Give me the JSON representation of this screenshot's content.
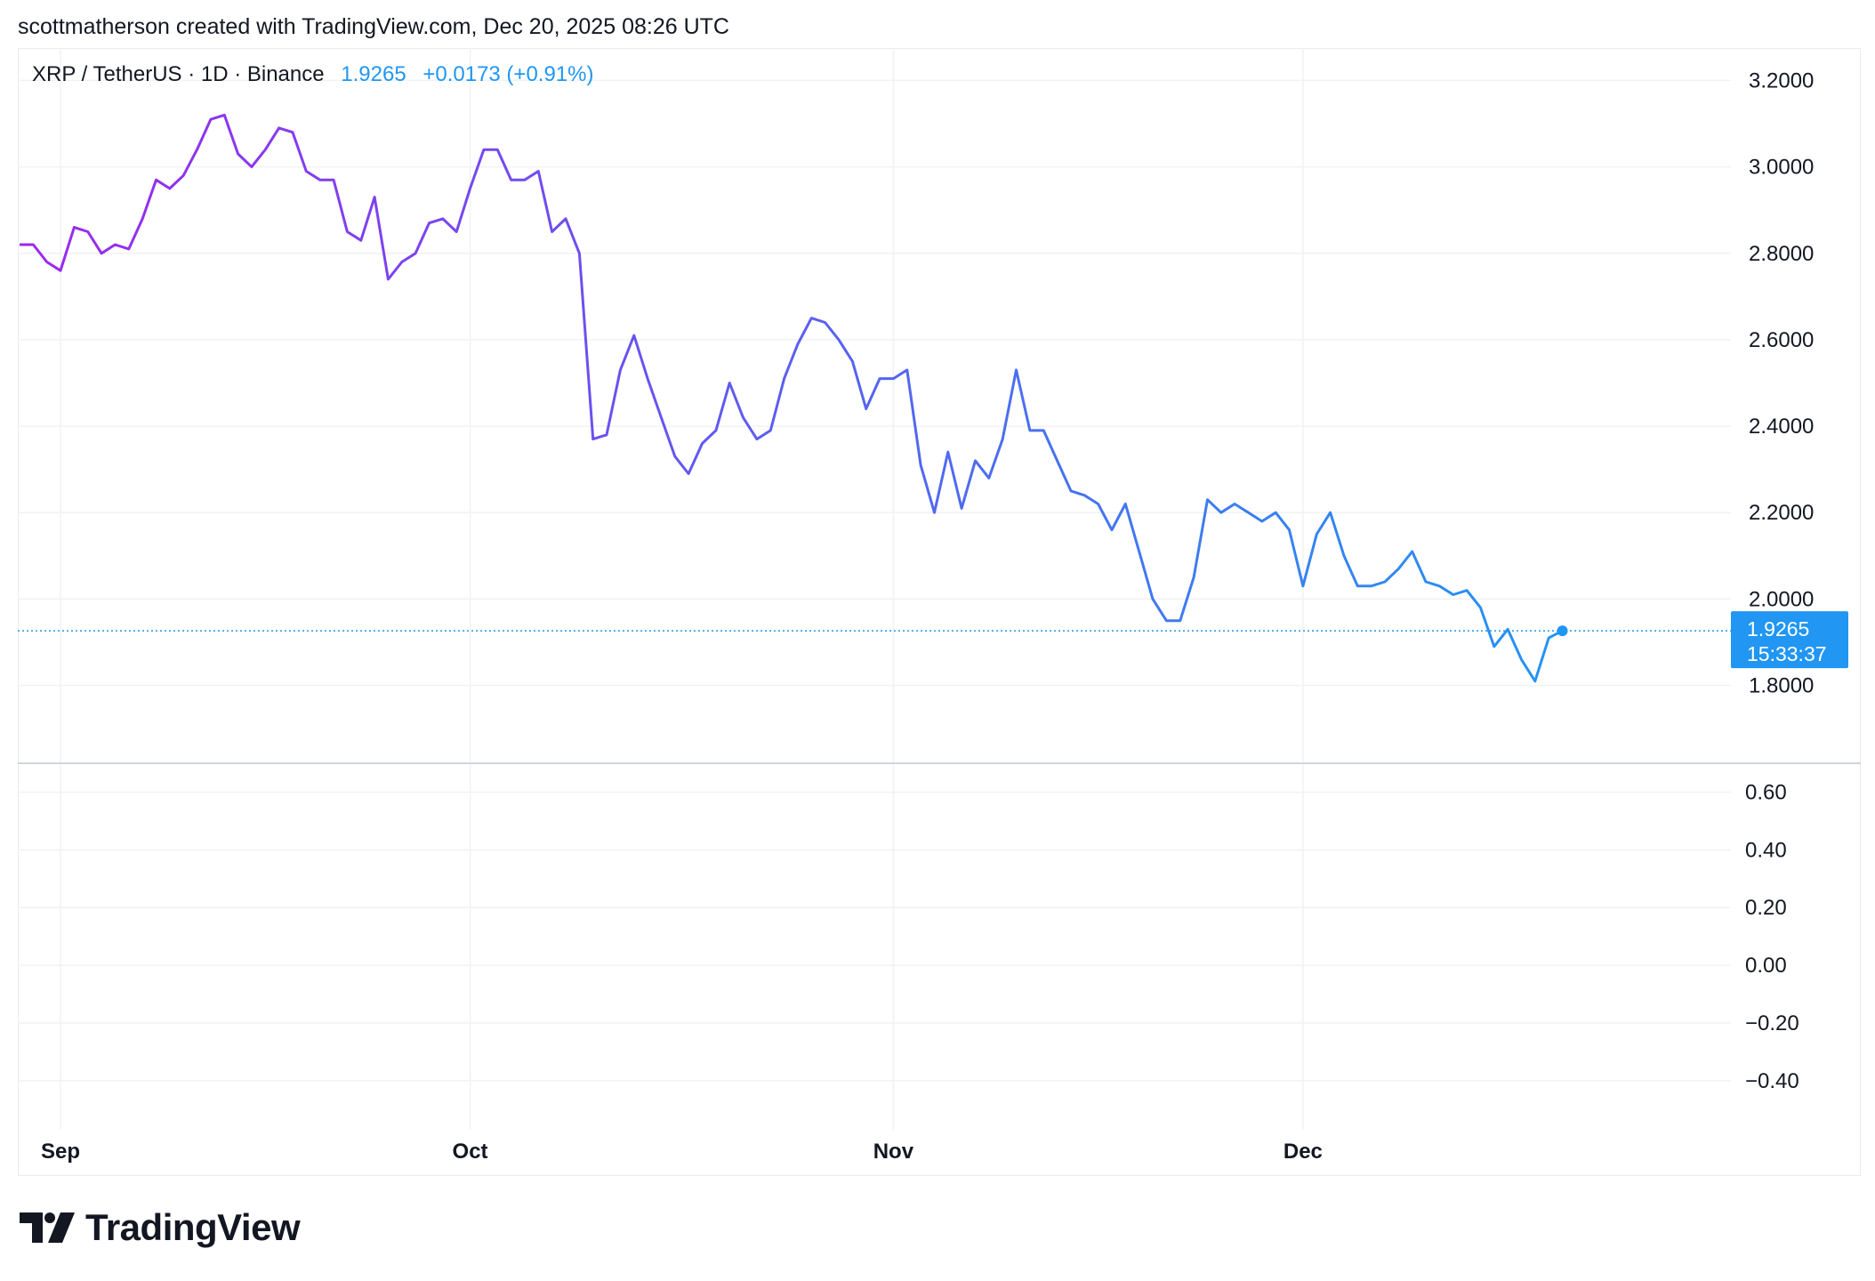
{
  "header": {
    "credit": "scottmatherson created with TradingView.com, Dec 20, 2025 08:26 UTC"
  },
  "legend": {
    "symbol": "XRP / TetherUS · 1D · Binance",
    "last_price": "1.9265",
    "change": "+0.0173 (+0.91%)"
  },
  "price_tag": {
    "price": "1.9265",
    "countdown": "15:33:37"
  },
  "footer": {
    "brand": "TradingView",
    "logo_icon": "tradingview-logo-icon"
  },
  "colors": {
    "line_start": "#9c27f0",
    "line_mid": "#5b5ff0",
    "line_end": "#2196f3",
    "price_tag_bg": "#2196f3",
    "grid": "#f0f2f5",
    "axis_text": "#131722"
  },
  "chart_data": {
    "type": "line",
    "series": [
      {
        "values": [
          2.82,
          2.82,
          2.78,
          2.76,
          2.86,
          2.85,
          2.8,
          2.82,
          2.81,
          2.88,
          2.97,
          2.95,
          2.98,
          3.04,
          3.11,
          3.12,
          3.03,
          3.0,
          3.04,
          3.09,
          3.08,
          2.99,
          2.97,
          2.97,
          2.85,
          2.83,
          2.93,
          2.74,
          2.78,
          2.8,
          2.87,
          2.88,
          2.85,
          2.95,
          3.04,
          3.04,
          2.97,
          2.97,
          2.99,
          2.85,
          2.88,
          2.8,
          2.37,
          2.38,
          2.53,
          2.61,
          2.51,
          2.42,
          2.33,
          2.29,
          2.36,
          2.39,
          2.5,
          2.42,
          2.37,
          2.39,
          2.51,
          2.59,
          2.65,
          2.64,
          2.6,
          2.55,
          2.44,
          2.51,
          2.51,
          2.53,
          2.31,
          2.2,
          2.34,
          2.21,
          2.32,
          2.28,
          2.37,
          2.53,
          2.39,
          2.39,
          2.32,
          2.25,
          2.24,
          2.22,
          2.16,
          2.22,
          2.11,
          2.0,
          1.95,
          1.95,
          2.05,
          2.23,
          2.2,
          2.22,
          2.2,
          2.18,
          2.2,
          2.16,
          2.03,
          2.15,
          2.2,
          2.1,
          2.03,
          2.03,
          2.04,
          2.07,
          2.11,
          2.04,
          2.03,
          2.01,
          2.02,
          1.98,
          1.89,
          1.93,
          1.86,
          1.81,
          1.91,
          1.9265
        ]
      }
    ],
    "x_ticks": [
      {
        "label": "Sep",
        "index": 3
      },
      {
        "label": "Oct",
        "index": 33
      },
      {
        "label": "Nov",
        "index": 64
      },
      {
        "label": "Dec",
        "index": 94
      }
    ],
    "y_ticks_price": [
      "3.2000",
      "3.0000",
      "2.8000",
      "2.6000",
      "2.4000",
      "2.2000",
      "2.0000",
      "1.8000"
    ],
    "y_ticks_lower": [
      "0.60",
      "0.40",
      "0.20",
      "0.00",
      "−0.20",
      "−0.40"
    ],
    "y_range_price": [
      1.62,
      3.275
    ],
    "y_range_lower": [
      -0.57,
      0.7
    ],
    "last_value": 1.9265,
    "grid": true
  }
}
